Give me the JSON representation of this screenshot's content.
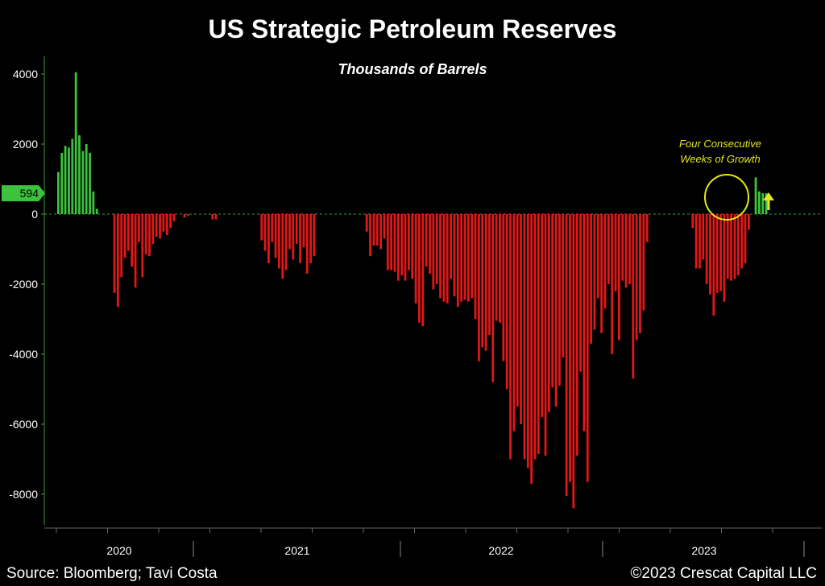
{
  "header": {
    "title": "US Strategic Petroleum Reserves",
    "subtitle": "Thousands of Barrels"
  },
  "footer": {
    "source": "Source: Bloomberg; Tavi Costa",
    "copyright": "©2023 Crescat Capital LLC"
  },
  "colors": {
    "positive": "#3cc23c",
    "negative": "#e01818",
    "annotation": "#e6e61a",
    "axis": "#2fa52f",
    "background": "#000000"
  },
  "chart_data": {
    "type": "bar",
    "ylim": [
      -8600,
      4400
    ],
    "yticks": [
      4000,
      2000,
      0,
      -2000,
      -4000,
      -6000,
      -8000
    ],
    "year_labels": [
      "2020",
      "2021",
      "2022",
      "2023"
    ],
    "last_value_label": "594",
    "annotation": {
      "line1": "Four Consecutive",
      "line2": "Weeks of Growth"
    },
    "values": [
      1200,
      1750,
      1950,
      1900,
      2150,
      4050,
      2250,
      1800,
      2000,
      1750,
      650,
      150,
      0,
      0,
      0,
      0,
      -2250,
      -2650,
      -1800,
      -1250,
      -1050,
      -1500,
      -2100,
      -800,
      -1800,
      -1150,
      -1200,
      -850,
      -650,
      -700,
      -500,
      -600,
      -400,
      -200,
      0,
      0,
      -100,
      -50,
      0,
      0,
      0,
      0,
      0,
      0,
      -150,
      -150,
      0,
      0,
      0,
      0,
      0,
      0,
      0,
      0,
      0,
      0,
      0,
      0,
      -750,
      -1050,
      -1400,
      -800,
      -1250,
      -1550,
      -1850,
      -1600,
      -1000,
      -1300,
      -850,
      -1400,
      -950,
      -1700,
      -1400,
      -1200,
      0,
      0,
      0,
      0,
      0,
      0,
      0,
      0,
      0,
      0,
      0,
      0,
      0,
      0,
      -500,
      -1200,
      -900,
      -900,
      -1000,
      -700,
      -1600,
      -1600,
      -1650,
      -1900,
      -1750,
      -1900,
      -1600,
      -1850,
      -2550,
      -3100,
      -3200,
      -1500,
      -1700,
      -2150,
      -2000,
      -2400,
      -2500,
      -2550,
      -1850,
      -2350,
      -2650,
      -2500,
      -2450,
      -2500,
      -2400,
      -3000,
      -4200,
      -3800,
      -3900,
      -3450,
      -4800,
      -3050,
      -3100,
      -4200,
      -5000,
      -7000,
      -6200,
      -5500,
      -6000,
      -7000,
      -7250,
      -7700,
      -7000,
      -6850,
      -5800,
      -6900,
      -5650,
      -4950,
      -5500,
      -4900,
      -4100,
      -8050,
      -7650,
      -8400,
      -6900,
      -4500,
      -6200,
      -7650,
      -3700,
      -3300,
      -2400,
      -3400,
      -2700,
      -2000,
      -4000,
      -2200,
      -3600,
      -1900,
      -2100,
      -2000,
      -4700,
      -3600,
      -3400,
      -2750,
      -800,
      0,
      0,
      0,
      0,
      0,
      0,
      0,
      0,
      0,
      0,
      0,
      0,
      -400,
      -1550,
      -1550,
      -1300,
      -2000,
      -2300,
      -2900,
      -2250,
      -2200,
      -2500,
      -1850,
      -1900,
      -1850,
      -1750,
      -1550,
      -1400,
      -450,
      0,
      1050,
      650,
      600,
      594
    ]
  }
}
